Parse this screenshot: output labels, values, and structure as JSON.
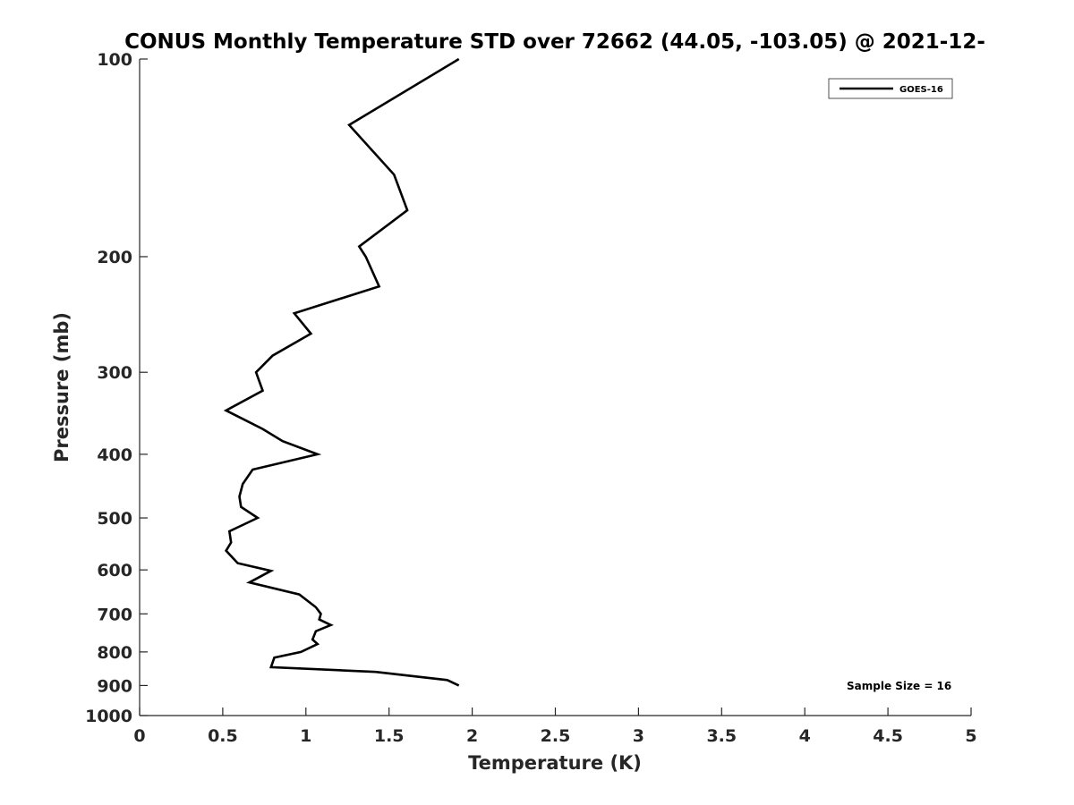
{
  "chart_data": {
    "type": "line",
    "title": "CONUS Monthly Temperature STD over 72662 (44.05, -103.05) @ 2021-12-",
    "xlabel": "Temperature (K)",
    "ylabel": "Pressure (mb)",
    "xlim": [
      0,
      5
    ],
    "ylim": [
      100,
      1000
    ],
    "y_scale": "log",
    "y_reversed": true,
    "x_ticks": [
      "0",
      "0.5",
      "1",
      "1.5",
      "2",
      "2.5",
      "3",
      "3.5",
      "4",
      "4.5",
      "5"
    ],
    "y_ticks": [
      100,
      200,
      300,
      400,
      500,
      600,
      700,
      800,
      900,
      1000
    ],
    "grid": false,
    "legend_position": "top-right",
    "series": [
      {
        "name": "GOES-16",
        "color": "#000000",
        "points": [
          [
            1.92,
            100
          ],
          [
            1.26,
            126
          ],
          [
            1.53,
            150
          ],
          [
            1.61,
            170
          ],
          [
            1.32,
            193
          ],
          [
            1.36,
            200
          ],
          [
            1.44,
            222
          ],
          [
            0.93,
            244
          ],
          [
            1.03,
            262
          ],
          [
            0.8,
            283
          ],
          [
            0.7,
            300
          ],
          [
            0.74,
            320
          ],
          [
            0.52,
            343
          ],
          [
            0.74,
            366
          ],
          [
            0.86,
            382
          ],
          [
            1.07,
            400
          ],
          [
            0.68,
            422
          ],
          [
            0.62,
            444
          ],
          [
            0.6,
            464
          ],
          [
            0.61,
            481
          ],
          [
            0.71,
            500
          ],
          [
            0.54,
            524
          ],
          [
            0.55,
            545
          ],
          [
            0.52,
            561
          ],
          [
            0.59,
            586
          ],
          [
            0.79,
            602
          ],
          [
            0.66,
            627
          ],
          [
            0.96,
            654
          ],
          [
            1.06,
            684
          ],
          [
            1.09,
            700
          ],
          [
            1.08,
            714
          ],
          [
            1.15,
            728
          ],
          [
            1.06,
            744
          ],
          [
            1.04,
            766
          ],
          [
            1.07,
            778
          ],
          [
            0.97,
            800
          ],
          [
            0.81,
            816
          ],
          [
            0.79,
            844
          ],
          [
            1.42,
            858
          ],
          [
            1.85,
            883
          ],
          [
            1.92,
            900
          ]
        ]
      }
    ],
    "annotations": [
      {
        "text": "Sample Size = 16",
        "position": "bottom-right"
      }
    ]
  }
}
